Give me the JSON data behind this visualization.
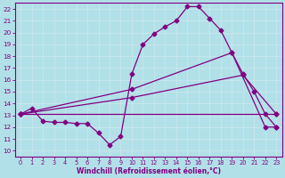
{
  "xlabel": "Windchill (Refroidissement éolien,°C)",
  "bg_color": "#b2e0e8",
  "line_color": "#800080",
  "grid_color": "#d0edf0",
  "xlim": [
    -0.5,
    23.5
  ],
  "ylim": [
    9.5,
    22.5
  ],
  "xticks": [
    0,
    1,
    2,
    3,
    4,
    5,
    6,
    7,
    8,
    9,
    10,
    11,
    12,
    13,
    14,
    15,
    16,
    17,
    18,
    19,
    20,
    21,
    22,
    23
  ],
  "yticks": [
    10,
    11,
    12,
    13,
    14,
    15,
    16,
    17,
    18,
    19,
    20,
    21,
    22
  ],
  "line1_x": [
    0,
    1,
    2,
    3,
    4,
    5,
    6,
    7,
    8,
    9,
    10,
    11,
    12,
    13,
    14,
    15,
    16,
    17,
    18,
    19,
    20,
    21,
    22,
    23
  ],
  "line1_y": [
    13.1,
    13.6,
    12.5,
    12.4,
    12.4,
    12.3,
    12.3,
    11.5,
    10.5,
    11.2,
    16.5,
    19.0,
    19.9,
    20.5,
    21.0,
    22.2,
    22.2,
    21.2,
    20.2,
    18.3,
    16.5,
    15.0,
    13.1,
    12.0
  ],
  "line2_x": [
    0,
    23
  ],
  "line2_y": [
    13.1,
    13.1
  ],
  "line3_x": [
    0,
    10,
    20,
    23
  ],
  "line3_y": [
    13.1,
    14.5,
    16.4,
    13.1
  ],
  "line4_x": [
    0,
    10,
    19,
    22,
    23
  ],
  "line4_y": [
    13.1,
    15.2,
    18.3,
    12.0,
    12.0
  ]
}
